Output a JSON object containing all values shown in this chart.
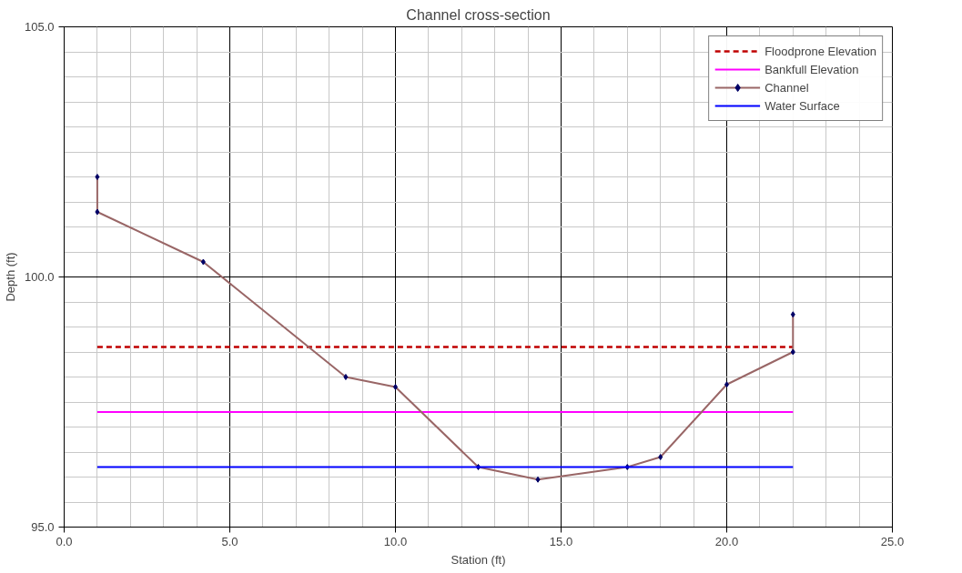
{
  "chart_data": {
    "type": "line",
    "title": "Channel cross-section",
    "xlabel": "Station (ft)",
    "ylabel": "Depth (ft)",
    "xlim": [
      0,
      25
    ],
    "ylim": [
      95,
      105
    ],
    "xticks": [
      {
        "value": 0,
        "label": "0.0"
      },
      {
        "value": 5,
        "label": "5.0"
      },
      {
        "value": 10,
        "label": "10.0"
      },
      {
        "value": 15,
        "label": "15.0"
      },
      {
        "value": 20,
        "label": "20.0"
      },
      {
        "value": 25,
        "label": "25.0"
      }
    ],
    "yticks": [
      {
        "value": 95,
        "label": "95.0"
      },
      {
        "value": 100,
        "label": "100.0"
      },
      {
        "value": 105,
        "label": "105.0"
      }
    ],
    "grid": true,
    "legend": "top right",
    "series": [
      {
        "name": "Floodprone Elevation",
        "color": "#c00000",
        "line_style": "dashed",
        "marker": "none",
        "x": [
          1,
          22
        ],
        "values": [
          98.6,
          98.6
        ]
      },
      {
        "name": "Bankfull Elevation",
        "color": "#ff00ff",
        "line_style": "solid",
        "marker": "none",
        "x": [
          1,
          22
        ],
        "values": [
          97.3,
          97.3
        ]
      },
      {
        "name": "Channel",
        "color": "#996666",
        "line_style": "solid",
        "marker": "diamond",
        "x": [
          1,
          1,
          4.2,
          8.5,
          10,
          12.5,
          14.3,
          17,
          18,
          20,
          22,
          22
        ],
        "values": [
          102.0,
          101.3,
          100.3,
          98.0,
          97.8,
          96.2,
          95.95,
          96.2,
          96.4,
          97.85,
          98.5,
          99.25
        ]
      },
      {
        "name": "Water Surface",
        "color": "#0000ff",
        "line_style": "solid",
        "marker": "none",
        "x": [
          1,
          22
        ],
        "values": [
          96.2,
          96.2
        ]
      }
    ]
  }
}
